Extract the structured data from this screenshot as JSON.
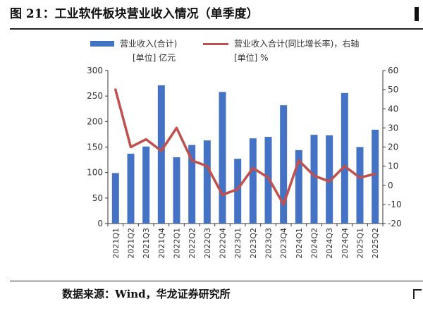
{
  "figure": {
    "title": "图 21：工业软件板块营业收入情况（单季度）",
    "source": "数据来源：Wind，华龙证券研究所"
  },
  "colors": {
    "bar": "#4472C4",
    "line": "#C0504D",
    "axis": "#333333",
    "text": "#1a1a1a"
  },
  "chart_data": {
    "type": "bar",
    "categories": [
      "2021Q1",
      "2021Q2",
      "2021Q3",
      "2021Q4",
      "2022Q1",
      "2022Q2",
      "2022Q3",
      "2022Q4",
      "2023Q1",
      "2023Q2",
      "2023Q3",
      "2023Q4",
      "2024Q1",
      "2024Q2",
      "2024Q3",
      "2024Q4",
      "2025Q1",
      "2025Q2"
    ],
    "series": [
      {
        "name": "营业收入(合计)",
        "unit": "[单位] 亿元",
        "type": "bar",
        "axis": "left",
        "values": [
          99,
          137,
          151,
          271,
          130,
          154,
          163,
          258,
          127,
          167,
          170,
          232,
          144,
          174,
          173,
          256,
          150,
          184
        ]
      },
      {
        "name": "营业收入合计(同比增长率)，右轴",
        "unit": "[单位] %",
        "type": "line",
        "axis": "right",
        "values": [
          50,
          20,
          24,
          18,
          30,
          13,
          10,
          -5,
          -2,
          9,
          4,
          -10,
          13,
          5,
          2,
          10,
          4,
          6
        ]
      }
    ],
    "y_left": {
      "min": 0,
      "max": 300,
      "ticks": [
        0,
        50,
        100,
        150,
        200,
        250,
        300
      ]
    },
    "y_right": {
      "min": -20,
      "max": 60,
      "ticks": [
        -20,
        -10,
        0,
        10,
        20,
        30,
        40,
        50,
        60
      ]
    },
    "grid": false,
    "legend_position": "top"
  }
}
